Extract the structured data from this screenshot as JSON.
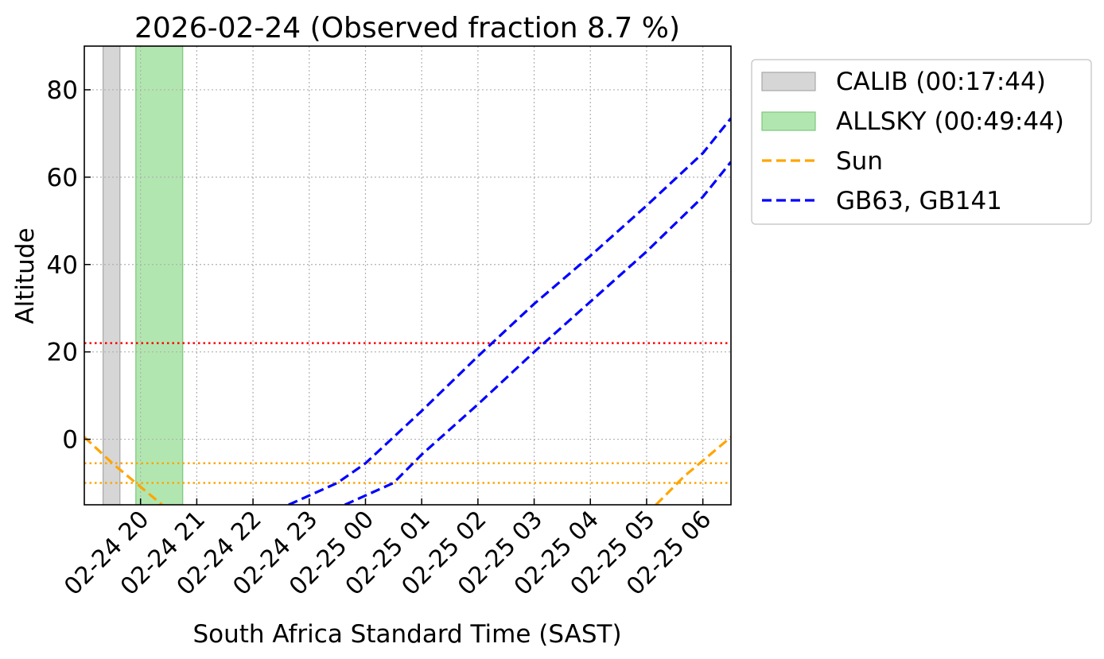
{
  "chart_data": {
    "type": "line",
    "title": "2026-02-24 (Observed fraction 8.7 %)",
    "xlabel": "South Africa Standard Time (SAST)",
    "ylabel": "Altitude",
    "x_unit": "hours (SAST)",
    "xlim": [
      "2026-02-24 19:00",
      "2026-02-25 06:30"
    ],
    "ylim": [
      -15,
      90
    ],
    "x_ticks": [
      {
        "t": "2026-02-24 20:00",
        "label": "02-24 20"
      },
      {
        "t": "2026-02-24 21:00",
        "label": "02-24 21"
      },
      {
        "t": "2026-02-24 22:00",
        "label": "02-24 22"
      },
      {
        "t": "2026-02-24 23:00",
        "label": "02-24 23"
      },
      {
        "t": "2026-02-25 00:00",
        "label": "02-25 00"
      },
      {
        "t": "2026-02-25 01:00",
        "label": "02-25 01"
      },
      {
        "t": "2026-02-25 02:00",
        "label": "02-25 02"
      },
      {
        "t": "2026-02-25 03:00",
        "label": "02-25 03"
      },
      {
        "t": "2026-02-25 04:00",
        "label": "02-25 04"
      },
      {
        "t": "2026-02-25 05:00",
        "label": "02-25 05"
      },
      {
        "t": "2026-02-25 06:00",
        "label": "02-25 06"
      }
    ],
    "y_ticks": [
      0,
      20,
      40,
      60,
      80
    ],
    "grid": true,
    "legend_position": "outside-right-top",
    "spans": [
      {
        "name": "CALIB (00:17:44)",
        "start": "2026-02-24 19:20",
        "end": "2026-02-24 19:38",
        "color": "#d6d6d6",
        "edge": "#a8a8a8"
      },
      {
        "name": "ALLSKY (00:49:44)",
        "start": "2026-02-24 19:55",
        "end": "2026-02-24 20:45",
        "color": "#b2e6b0",
        "edge": "#7cc77a"
      }
    ],
    "hlines": [
      {
        "y": 22,
        "color": "#ff0000"
      },
      {
        "y": -5.5,
        "color": "#ffa500"
      },
      {
        "y": -10,
        "color": "#ffa500"
      }
    ],
    "series": [
      {
        "name": "Sun",
        "color": "#ffa500",
        "points": [
          [
            "2026-02-24 19:00",
            0.5
          ],
          [
            "2026-02-24 19:30",
            -5.5
          ],
          [
            "2026-02-24 19:55",
            -10
          ],
          [
            "2026-02-24 20:23",
            -15
          ]
        ]
      },
      {
        "name": "Sun",
        "color": "#ffa500",
        "points": [
          [
            "2026-02-25 05:10",
            -15
          ],
          [
            "2026-02-25 05:40",
            -8.5
          ],
          [
            "2026-02-25 06:30",
            0.5
          ]
        ]
      },
      {
        "name": "GB63, GB141",
        "color": "#0000ff",
        "points": [
          [
            "2026-02-24 22:38",
            -15
          ],
          [
            "2026-02-24 23:30",
            -10
          ],
          [
            "2026-02-25 00:00",
            -5.5
          ],
          [
            "2026-02-25 01:00",
            6.5
          ],
          [
            "2026-02-25 02:00",
            19
          ],
          [
            "2026-02-25 03:00",
            31
          ],
          [
            "2026-02-25 04:00",
            42
          ],
          [
            "2026-02-25 05:00",
            53.5
          ],
          [
            "2026-02-25 06:00",
            65.5
          ],
          [
            "2026-02-25 06:30",
            73.5
          ]
        ]
      },
      {
        "name": "GB63, GB141",
        "color": "#0000ff",
        "points": [
          [
            "2026-02-24 23:38",
            -15
          ],
          [
            "2026-02-25 00:30",
            -10
          ],
          [
            "2026-02-25 01:00",
            -3.5
          ],
          [
            "2026-02-25 02:00",
            8
          ],
          [
            "2026-02-25 03:00",
            20
          ],
          [
            "2026-02-25 04:00",
            31.5
          ],
          [
            "2026-02-25 05:00",
            43
          ],
          [
            "2026-02-25 06:00",
            55.5
          ],
          [
            "2026-02-25 06:30",
            63.5
          ]
        ]
      }
    ],
    "legend": [
      {
        "label": "CALIB (00:17:44)",
        "kind": "patch",
        "color": "#d6d6d6",
        "edge": "#a8a8a8"
      },
      {
        "label": "ALLSKY (00:49:44)",
        "kind": "patch",
        "color": "#b2e6b0",
        "edge": "#7cc77a"
      },
      {
        "label": "Sun",
        "kind": "dashed-line",
        "color": "#ffa500"
      },
      {
        "label": "GB63, GB141",
        "kind": "dashed-line",
        "color": "#0000ff"
      }
    ]
  }
}
